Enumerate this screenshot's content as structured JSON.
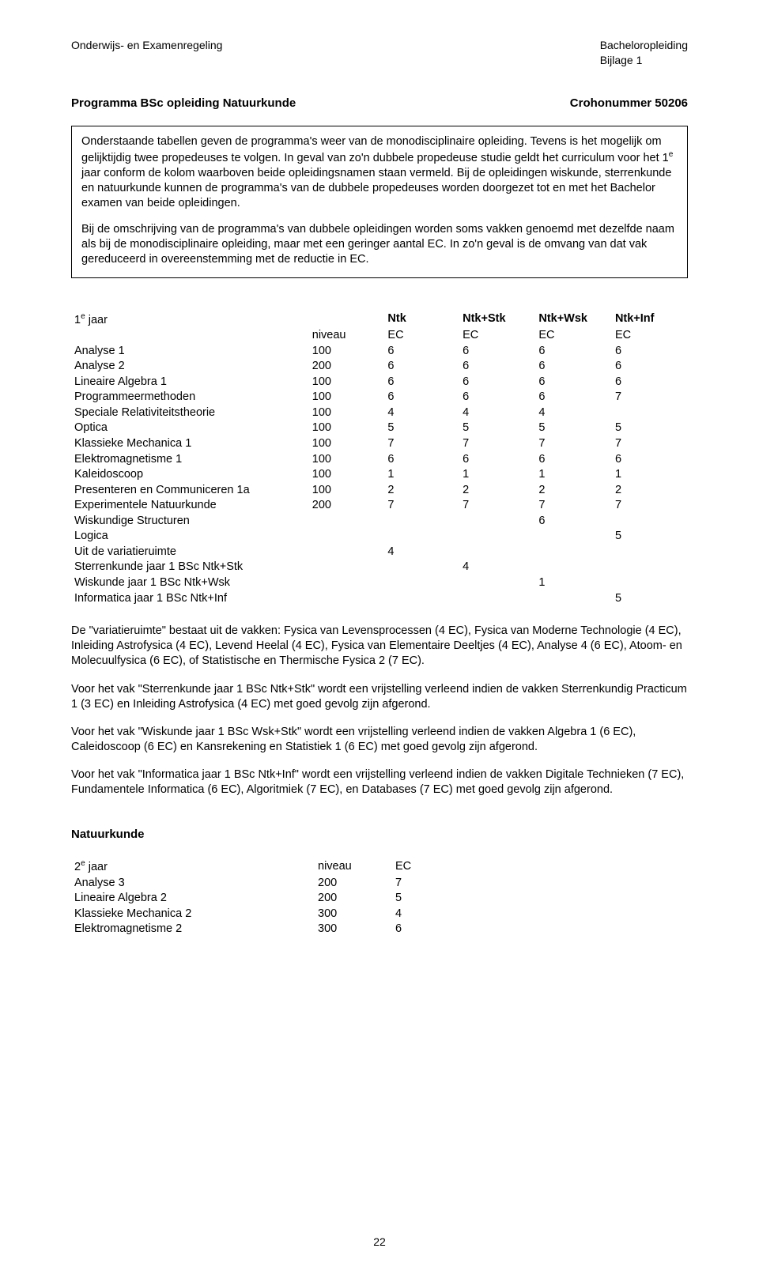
{
  "header": {
    "left": "Onderwijs- en Examenregeling",
    "right_line1": "Bacheloropleiding",
    "right_line2": "Bijlage 1"
  },
  "title": {
    "left": "Programma BSc opleiding Natuurkunde",
    "right": "Crohonummer 50206"
  },
  "box": {
    "p1a": "Onderstaande tabellen geven de programma's weer van de monodisciplinaire opleiding. Tevens is het mogelijk om gelijktijdig twee propedeuses te volgen. In geval van zo'n dubbele propedeuse studie geldt het curriculum voor het 1",
    "p1sup": "e",
    "p1b": " jaar conform de kolom waarboven beide opleidingsnamen staan vermeld. Bij de opleidingen wiskunde, sterrenkunde en natuurkunde kunnen de programma's van de dubbele propedeuses worden doorgezet tot en met het Bachelor examen van beide opleidingen.",
    "p2": "Bij de omschrijving van de programma's van dubbele opleidingen worden soms vakken genoemd met dezelfde naam als bij de monodisciplinaire opleiding, maar met een geringer aantal EC. In zo'n geval is de omvang van dat vak gereduceerd in overeenstemming met de reductie in EC."
  },
  "table1": {
    "head": {
      "year_a": "1",
      "year_sup": "e",
      "year_b": " jaar",
      "niveau": "niveau",
      "c1": "Ntk",
      "c2": "Ntk+Stk",
      "c3": "Ntk+Wsk",
      "c4": "Ntk+Inf",
      "ec": "EC"
    },
    "rows": [
      {
        "name": "Analyse 1",
        "niv": "100",
        "v": [
          "6",
          "6",
          "6",
          "6"
        ]
      },
      {
        "name": "Analyse 2",
        "niv": "200",
        "v": [
          "6",
          "6",
          "6",
          "6"
        ]
      },
      {
        "name": "Lineaire Algebra 1",
        "niv": "100",
        "v": [
          "6",
          "6",
          "6",
          "6"
        ]
      },
      {
        "name": "Programmeermethoden",
        "niv": "100",
        "v": [
          "6",
          "6",
          "6",
          "7"
        ]
      },
      {
        "name": "Speciale Relativiteitstheorie",
        "niv": "100",
        "v": [
          "4",
          "4",
          "4",
          ""
        ]
      },
      {
        "name": "Optica",
        "niv": "100",
        "v": [
          "5",
          "5",
          "5",
          "5"
        ]
      },
      {
        "name": "Klassieke Mechanica 1",
        "niv": "100",
        "v": [
          "7",
          "7",
          "7",
          "7"
        ]
      },
      {
        "name": "Elektromagnetisme 1",
        "niv": "100",
        "v": [
          "6",
          "6",
          "6",
          "6"
        ]
      },
      {
        "name": "Kaleidoscoop",
        "niv": "100",
        "v": [
          "1",
          "1",
          "1",
          "1"
        ]
      },
      {
        "name": "Presenteren en Communiceren 1a",
        "niv": "100",
        "v": [
          "2",
          "2",
          "2",
          "2"
        ]
      },
      {
        "name": "Experimentele Natuurkunde",
        "niv": "200",
        "v": [
          "7",
          "7",
          "7",
          "7"
        ]
      },
      {
        "name": "Wiskundige Structuren",
        "niv": "",
        "v": [
          "",
          "",
          "6",
          ""
        ]
      },
      {
        "name": "Logica",
        "niv": "",
        "v": [
          "",
          "",
          "",
          "5"
        ]
      },
      {
        "name": "Uit de variatieruimte",
        "niv": "",
        "v": [
          "4",
          "",
          "",
          ""
        ]
      },
      {
        "name": "Sterrenkunde jaar 1 BSc Ntk+Stk",
        "niv": "",
        "v": [
          "",
          "4",
          "",
          ""
        ]
      },
      {
        "name": "Wiskunde jaar 1 BSc Ntk+Wsk",
        "niv": "",
        "v": [
          "",
          "",
          "1",
          ""
        ]
      },
      {
        "name": "Informatica jaar 1 BSc Ntk+Inf",
        "niv": "",
        "v": [
          "",
          "",
          "",
          "5"
        ]
      }
    ]
  },
  "paras": {
    "p1": "De \"variatieruimte\" bestaat uit de vakken: Fysica van Levensprocessen (4 EC), Fysica van Moderne Technologie (4 EC), Inleiding Astrofysica (4 EC), Levend Heelal (4 EC), Fysica van Elementaire Deeltjes (4 EC), Analyse 4 (6 EC), Atoom- en Molecuulfysica (6 EC), of Statistische en Thermische Fysica 2 (7 EC).",
    "p2": "Voor het vak \"Sterrenkunde jaar 1 BSc Ntk+Stk\" wordt een vrijstelling verleend indien de vakken Sterrenkundig Practicum 1 (3 EC) en Inleiding Astrofysica (4 EC) met goed gevolg zijn afgerond.",
    "p3": "Voor het vak \"Wiskunde jaar 1 BSc Wsk+Stk\" wordt een vrijstelling verleend indien de vakken Algebra 1 (6 EC), Caleidoscoop (6 EC) en Kansrekening en Statistiek 1 (6 EC) met goed gevolg zijn afgerond.",
    "p4": "Voor het vak \"Informatica jaar 1 BSc Ntk+Inf\" wordt een vrijstelling verleend indien de vakken Digitale Technieken (7 EC), Fundamentele Informatica (6 EC), Algoritmiek (7 EC), en Databases (7 EC) met goed gevolg zijn afgerond."
  },
  "section2": {
    "heading": "Natuurkunde",
    "head": {
      "year_a": "2",
      "year_sup": "e",
      "year_b": " jaar",
      "niveau": "niveau",
      "ec": "EC"
    },
    "rows": [
      {
        "name": "Analyse 3",
        "niv": "200",
        "ec": "7"
      },
      {
        "name": "Lineaire Algebra 2",
        "niv": "200",
        "ec": "5"
      },
      {
        "name": "Klassieke Mechanica 2",
        "niv": "300",
        "ec": "4"
      },
      {
        "name": "Elektromagnetisme 2",
        "niv": "300",
        "ec": "6"
      }
    ]
  },
  "page_number": "22"
}
